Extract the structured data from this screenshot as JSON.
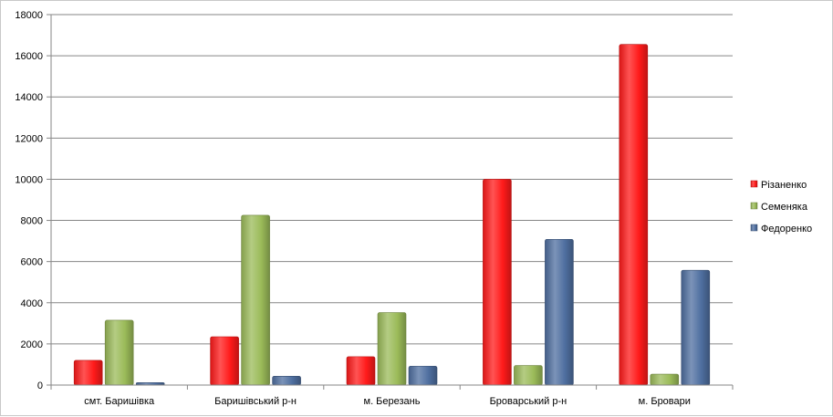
{
  "chart_data": {
    "type": "bar",
    "title": "",
    "xlabel": "",
    "ylabel": "",
    "categories": [
      "смт. Баришівка",
      "Баришівський р-н",
      "м. Березань",
      "Броварський р-н",
      "м. Бровари"
    ],
    "series": [
      {
        "name": "Різаненко",
        "color": "#ff1a1a",
        "values": [
          1200,
          2350,
          1380,
          10000,
          16550
        ]
      },
      {
        "name": "Семеняка",
        "color": "#9bbb59",
        "values": [
          3150,
          8250,
          3520,
          950,
          530
        ]
      },
      {
        "name": "Федоренко",
        "color": "#4f6fa0",
        "values": [
          120,
          430,
          920,
          7080,
          5580
        ]
      }
    ],
    "ylim": [
      0,
      18000
    ],
    "yticks": [
      0,
      2000,
      4000,
      6000,
      8000,
      10000,
      12000,
      14000,
      16000,
      18000
    ],
    "grid": true,
    "legend_position": "right"
  }
}
